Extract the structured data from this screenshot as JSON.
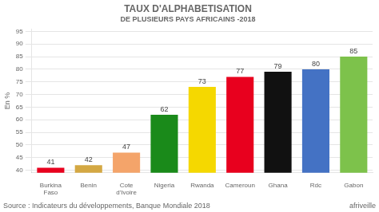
{
  "chart_data": {
    "type": "bar",
    "title": "TAUX D'ALPHABETISATION",
    "subtitle": "DE PLUSIEURS PAYS AFRICAINS -2018",
    "ylabel": "En %",
    "annotations": [
      "Source : Indicateurs du développements, Banque Mondiale 2018",
      "afriveille"
    ],
    "categories": [
      "Burkina\nFaso",
      "Benin",
      "Cote\nd'Ivoire",
      "Nigeria",
      "Rwanda",
      "Cameroun",
      "Ghana",
      "Rdc",
      "Gabon"
    ],
    "values": [
      41,
      42,
      47,
      62,
      73,
      77,
      79,
      80,
      85
    ],
    "colors": [
      "#e8001e",
      "#d4a843",
      "#f4a46a",
      "#1a8a1a",
      "#f5d800",
      "#e8001e",
      "#111111",
      "#4472c4",
      "#7dc24b"
    ],
    "ylim": [
      39,
      96
    ],
    "yticks": [
      40,
      45,
      50,
      55,
      60,
      65,
      70,
      75,
      80,
      85,
      90,
      95
    ],
    "grid": true,
    "data_labels": true
  }
}
